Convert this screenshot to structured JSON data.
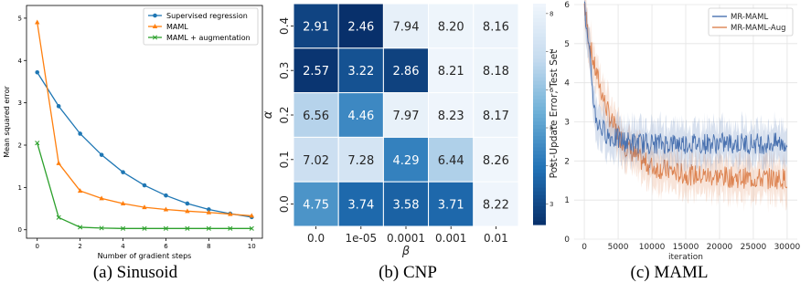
{
  "captions": [
    "(a) Sinusoid",
    "(b) CNP",
    "(c) MAML"
  ],
  "chart_data": [
    {
      "type": "line",
      "title": "",
      "xlabel": "Number of gradient steps",
      "ylabel": "Mean squared error",
      "x": [
        0,
        1,
        2,
        3,
        4,
        5,
        6,
        7,
        8,
        9,
        10
      ],
      "xticks": [
        0,
        2,
        4,
        6,
        8,
        10
      ],
      "yticks": [
        0,
        1,
        2,
        3,
        4,
        5
      ],
      "xlim": [
        -0.5,
        10.5
      ],
      "ylim": [
        -0.2,
        5.3
      ],
      "legend_position": "top-right",
      "grid": false,
      "series": [
        {
          "name": "Supervised regression",
          "color": "#1f77b4",
          "marker": "circle",
          "values": [
            3.72,
            2.92,
            2.27,
            1.77,
            1.36,
            1.05,
            0.81,
            0.62,
            0.48,
            0.38,
            0.3
          ]
        },
        {
          "name": "MAML",
          "color": "#ff7f0e",
          "marker": "triangle",
          "values": [
            4.9,
            1.57,
            0.92,
            0.74,
            0.62,
            0.53,
            0.48,
            0.44,
            0.41,
            0.37,
            0.33
          ]
        },
        {
          "name": "MAML + augmentation",
          "color": "#2ca02c",
          "marker": "x",
          "values": [
            2.05,
            0.29,
            0.06,
            0.04,
            0.03,
            0.03,
            0.03,
            0.03,
            0.03,
            0.03,
            0.03
          ]
        }
      ]
    },
    {
      "type": "heatmap",
      "title": "",
      "xlabel": "β",
      "ylabel": "α",
      "x_categories": [
        "0.0",
        "1e-05",
        "0.0001",
        "0.001",
        "0.01"
      ],
      "y_categories": [
        "0.4",
        "0.3",
        "0.2",
        "0.1",
        "0.0"
      ],
      "values": [
        [
          2.91,
          2.46,
          7.94,
          8.2,
          8.16
        ],
        [
          2.57,
          3.22,
          2.86,
          8.21,
          8.18
        ],
        [
          6.56,
          4.46,
          7.97,
          8.23,
          8.17
        ],
        [
          7.02,
          7.28,
          4.29,
          6.44,
          8.26
        ],
        [
          4.75,
          3.74,
          3.58,
          3.71,
          8.22
        ]
      ],
      "colorbar": {
        "label": "Post-Update Error, Test Set",
        "ticks": [
          3,
          4,
          5,
          6,
          7,
          8
        ],
        "range": [
          2.46,
          8.26
        ],
        "colormap": "Blues reversed"
      }
    },
    {
      "type": "line",
      "title": "",
      "xlabel": "iteration",
      "ylabel": "",
      "xticks": [
        0,
        5000,
        10000,
        15000,
        20000,
        25000,
        30000
      ],
      "yticks": [
        0,
        1,
        2,
        3,
        4,
        5,
        6
      ],
      "xlim": [
        -1500,
        31500
      ],
      "ylim": [
        0,
        6
      ],
      "legend_position": "top-right",
      "grid": true,
      "series": [
        {
          "name": "MR-MAML",
          "color": "#4a72b0",
          "x": [
            0,
            500,
            1000,
            1500,
            2000,
            3000,
            4000,
            6000,
            8000,
            10000,
            15000,
            20000,
            25000,
            30000
          ],
          "values": [
            6.0,
            5.0,
            4.3,
            3.3,
            2.95,
            2.75,
            2.6,
            2.5,
            2.45,
            2.45,
            2.45,
            2.45,
            2.45,
            2.45
          ]
        },
        {
          "name": "MR-MAML-Aug",
          "color": "#dd8452",
          "x": [
            0,
            500,
            1000,
            1500,
            2000,
            3000,
            4000,
            6000,
            8000,
            10000,
            15000,
            20000,
            25000,
            30000
          ],
          "values": [
            6.0,
            5.3,
            4.8,
            4.4,
            4.1,
            3.5,
            3.0,
            2.4,
            2.05,
            1.85,
            1.65,
            1.6,
            1.55,
            1.55
          ]
        }
      ]
    }
  ]
}
